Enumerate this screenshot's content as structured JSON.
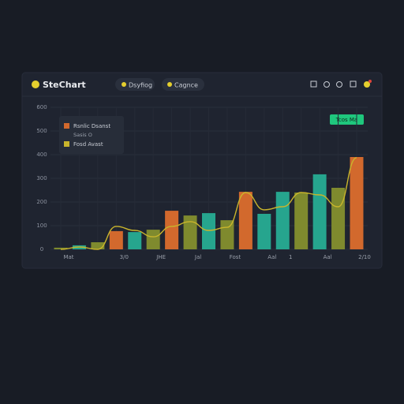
{
  "header": {
    "brand": "SteChart",
    "tabs": [
      "Dsyfiog",
      "Cagnce"
    ],
    "button": "Tcos Ma"
  },
  "chart_data": {
    "type": "bar",
    "categories": [
      "Mat",
      null,
      null,
      "3/0",
      null,
      "JHE",
      null,
      "Jal",
      null,
      "Fost",
      null,
      "Aal",
      "1",
      null,
      "Aal",
      null,
      "2/10"
    ],
    "series": [
      {
        "name": "Rsnlic Dsanst",
        "color": "#d2692d",
        "type": "bar",
        "values": [
          7,
          17,
          30,
          77,
          73,
          83,
          163,
          143,
          153,
          123,
          243,
          150,
          243,
          240,
          317,
          260,
          390
        ],
        "colors": [
          "#7f8a2e",
          "#26a58e",
          "#7f8a2e",
          "#d2692d",
          "#26a58e",
          "#7f8a2e",
          "#d2692d",
          "#7f8a2e",
          "#26a58e",
          "#7f8a2e",
          "#d2692d",
          "#26a58e",
          "#26a58e",
          "#7f8a2e",
          "#26a58e",
          "#7f8a2e",
          "#d2692d"
        ]
      },
      {
        "name": "Fosd Avast",
        "color": "#c9b52c",
        "type": "line",
        "values": [
          0,
          10,
          0,
          97,
          80,
          53,
          97,
          117,
          80,
          93,
          240,
          167,
          180,
          240,
          230,
          180,
          387
        ]
      }
    ],
    "legend_note": "Sasis O",
    "ylim": [
      0,
      600
    ],
    "yticks": [
      0,
      100,
      200,
      300,
      400,
      500,
      600
    ],
    "grid": true
  }
}
